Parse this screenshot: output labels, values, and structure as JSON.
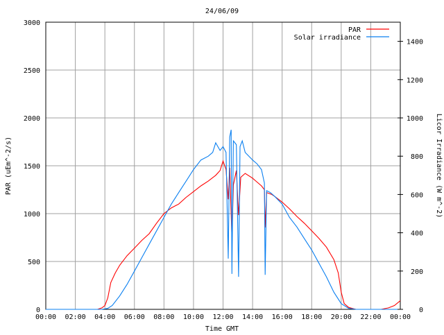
{
  "chart_data": {
    "type": "line",
    "title": "24/06/09",
    "xlabel": "Time GMT",
    "ylabel": "PAR (uEm^-2/s)",
    "y2label": "Licor Irradiance (W m^-2)",
    "xlim": [
      0,
      24
    ],
    "ylim": [
      0,
      3000
    ],
    "y2lim": [
      0,
      1500
    ],
    "grid": true,
    "legend_position": "top-right",
    "xticks": [
      "00:00",
      "02:00",
      "04:00",
      "06:00",
      "08:00",
      "10:00",
      "12:00",
      "14:00",
      "16:00",
      "18:00",
      "20:00",
      "22:00",
      "00:00"
    ],
    "yticks": [
      "0",
      "500",
      "1000",
      "1500",
      "2000",
      "2500",
      "3000"
    ],
    "y2ticks": [
      "0",
      "200",
      "400",
      "600",
      "800",
      "1000",
      "1200",
      "1400"
    ],
    "series": [
      {
        "name": "PAR",
        "axis": "left",
        "color": "#ff0000",
        "points": [
          [
            0,
            0
          ],
          [
            2,
            0
          ],
          [
            3.5,
            0
          ],
          [
            3.8,
            15
          ],
          [
            4,
            40
          ],
          [
            4.2,
            120
          ],
          [
            4.4,
            280
          ],
          [
            4.7,
            380
          ],
          [
            5,
            460
          ],
          [
            5.5,
            560
          ],
          [
            6,
            640
          ],
          [
            6.5,
            720
          ],
          [
            7,
            790
          ],
          [
            7.5,
            900
          ],
          [
            8,
            1000
          ],
          [
            8.5,
            1060
          ],
          [
            9,
            1100
          ],
          [
            9.5,
            1170
          ],
          [
            10,
            1230
          ],
          [
            10.5,
            1290
          ],
          [
            11,
            1340
          ],
          [
            11.5,
            1400
          ],
          [
            11.8,
            1450
          ],
          [
            12,
            1550
          ],
          [
            12.2,
            1460
          ],
          [
            12.35,
            1150
          ],
          [
            12.45,
            1480
          ],
          [
            12.6,
            745
          ],
          [
            12.7,
            1300
          ],
          [
            12.9,
            1450
          ],
          [
            13.05,
            985
          ],
          [
            13.2,
            1380
          ],
          [
            13.5,
            1420
          ],
          [
            14,
            1370
          ],
          [
            14.3,
            1330
          ],
          [
            14.6,
            1290
          ],
          [
            14.8,
            1250
          ],
          [
            14.85,
            855
          ],
          [
            14.95,
            1220
          ],
          [
            15.3,
            1200
          ],
          [
            15.5,
            1180
          ],
          [
            16,
            1120
          ],
          [
            16.5,
            1050
          ],
          [
            17,
            970
          ],
          [
            17.5,
            900
          ],
          [
            18,
            820
          ],
          [
            18.5,
            740
          ],
          [
            19,
            650
          ],
          [
            19.5,
            520
          ],
          [
            19.8,
            380
          ],
          [
            20,
            180
          ],
          [
            20.2,
            60
          ],
          [
            20.5,
            20
          ],
          [
            21,
            0
          ],
          [
            22,
            0
          ],
          [
            22.7,
            0
          ],
          [
            23.2,
            15
          ],
          [
            23.6,
            40
          ],
          [
            24,
            90
          ]
        ]
      },
      {
        "name": "Solar irradiance",
        "axis": "right",
        "color": "#0a7ff0",
        "points": [
          [
            0,
            0
          ],
          [
            3.8,
            0
          ],
          [
            4.2,
            5
          ],
          [
            4.5,
            20
          ],
          [
            5,
            70
          ],
          [
            5.5,
            130
          ],
          [
            6,
            200
          ],
          [
            6.5,
            270
          ],
          [
            7,
            340
          ],
          [
            7.5,
            410
          ],
          [
            8,
            480
          ],
          [
            8.5,
            550
          ],
          [
            9,
            610
          ],
          [
            9.5,
            670
          ],
          [
            10,
            730
          ],
          [
            10.5,
            780
          ],
          [
            11,
            800
          ],
          [
            11.3,
            820
          ],
          [
            11.5,
            870
          ],
          [
            11.8,
            830
          ],
          [
            12,
            850
          ],
          [
            12.2,
            820
          ],
          [
            12.35,
            265
          ],
          [
            12.45,
            900
          ],
          [
            12.55,
            938
          ],
          [
            12.6,
            185
          ],
          [
            12.7,
            880
          ],
          [
            12.9,
            860
          ],
          [
            13.05,
            170
          ],
          [
            13.15,
            850
          ],
          [
            13.3,
            880
          ],
          [
            13.5,
            820
          ],
          [
            14,
            780
          ],
          [
            14.3,
            760
          ],
          [
            14.6,
            730
          ],
          [
            14.8,
            660
          ],
          [
            14.85,
            180
          ],
          [
            14.95,
            620
          ],
          [
            15.2,
            610
          ],
          [
            15.5,
            590
          ],
          [
            16,
            550
          ],
          [
            16.5,
            480
          ],
          [
            17,
            430
          ],
          [
            17.5,
            370
          ],
          [
            18,
            310
          ],
          [
            18.5,
            240
          ],
          [
            19,
            170
          ],
          [
            19.5,
            90
          ],
          [
            20,
            30
          ],
          [
            20.5,
            5
          ],
          [
            21,
            0
          ],
          [
            24,
            0
          ]
        ]
      }
    ]
  }
}
